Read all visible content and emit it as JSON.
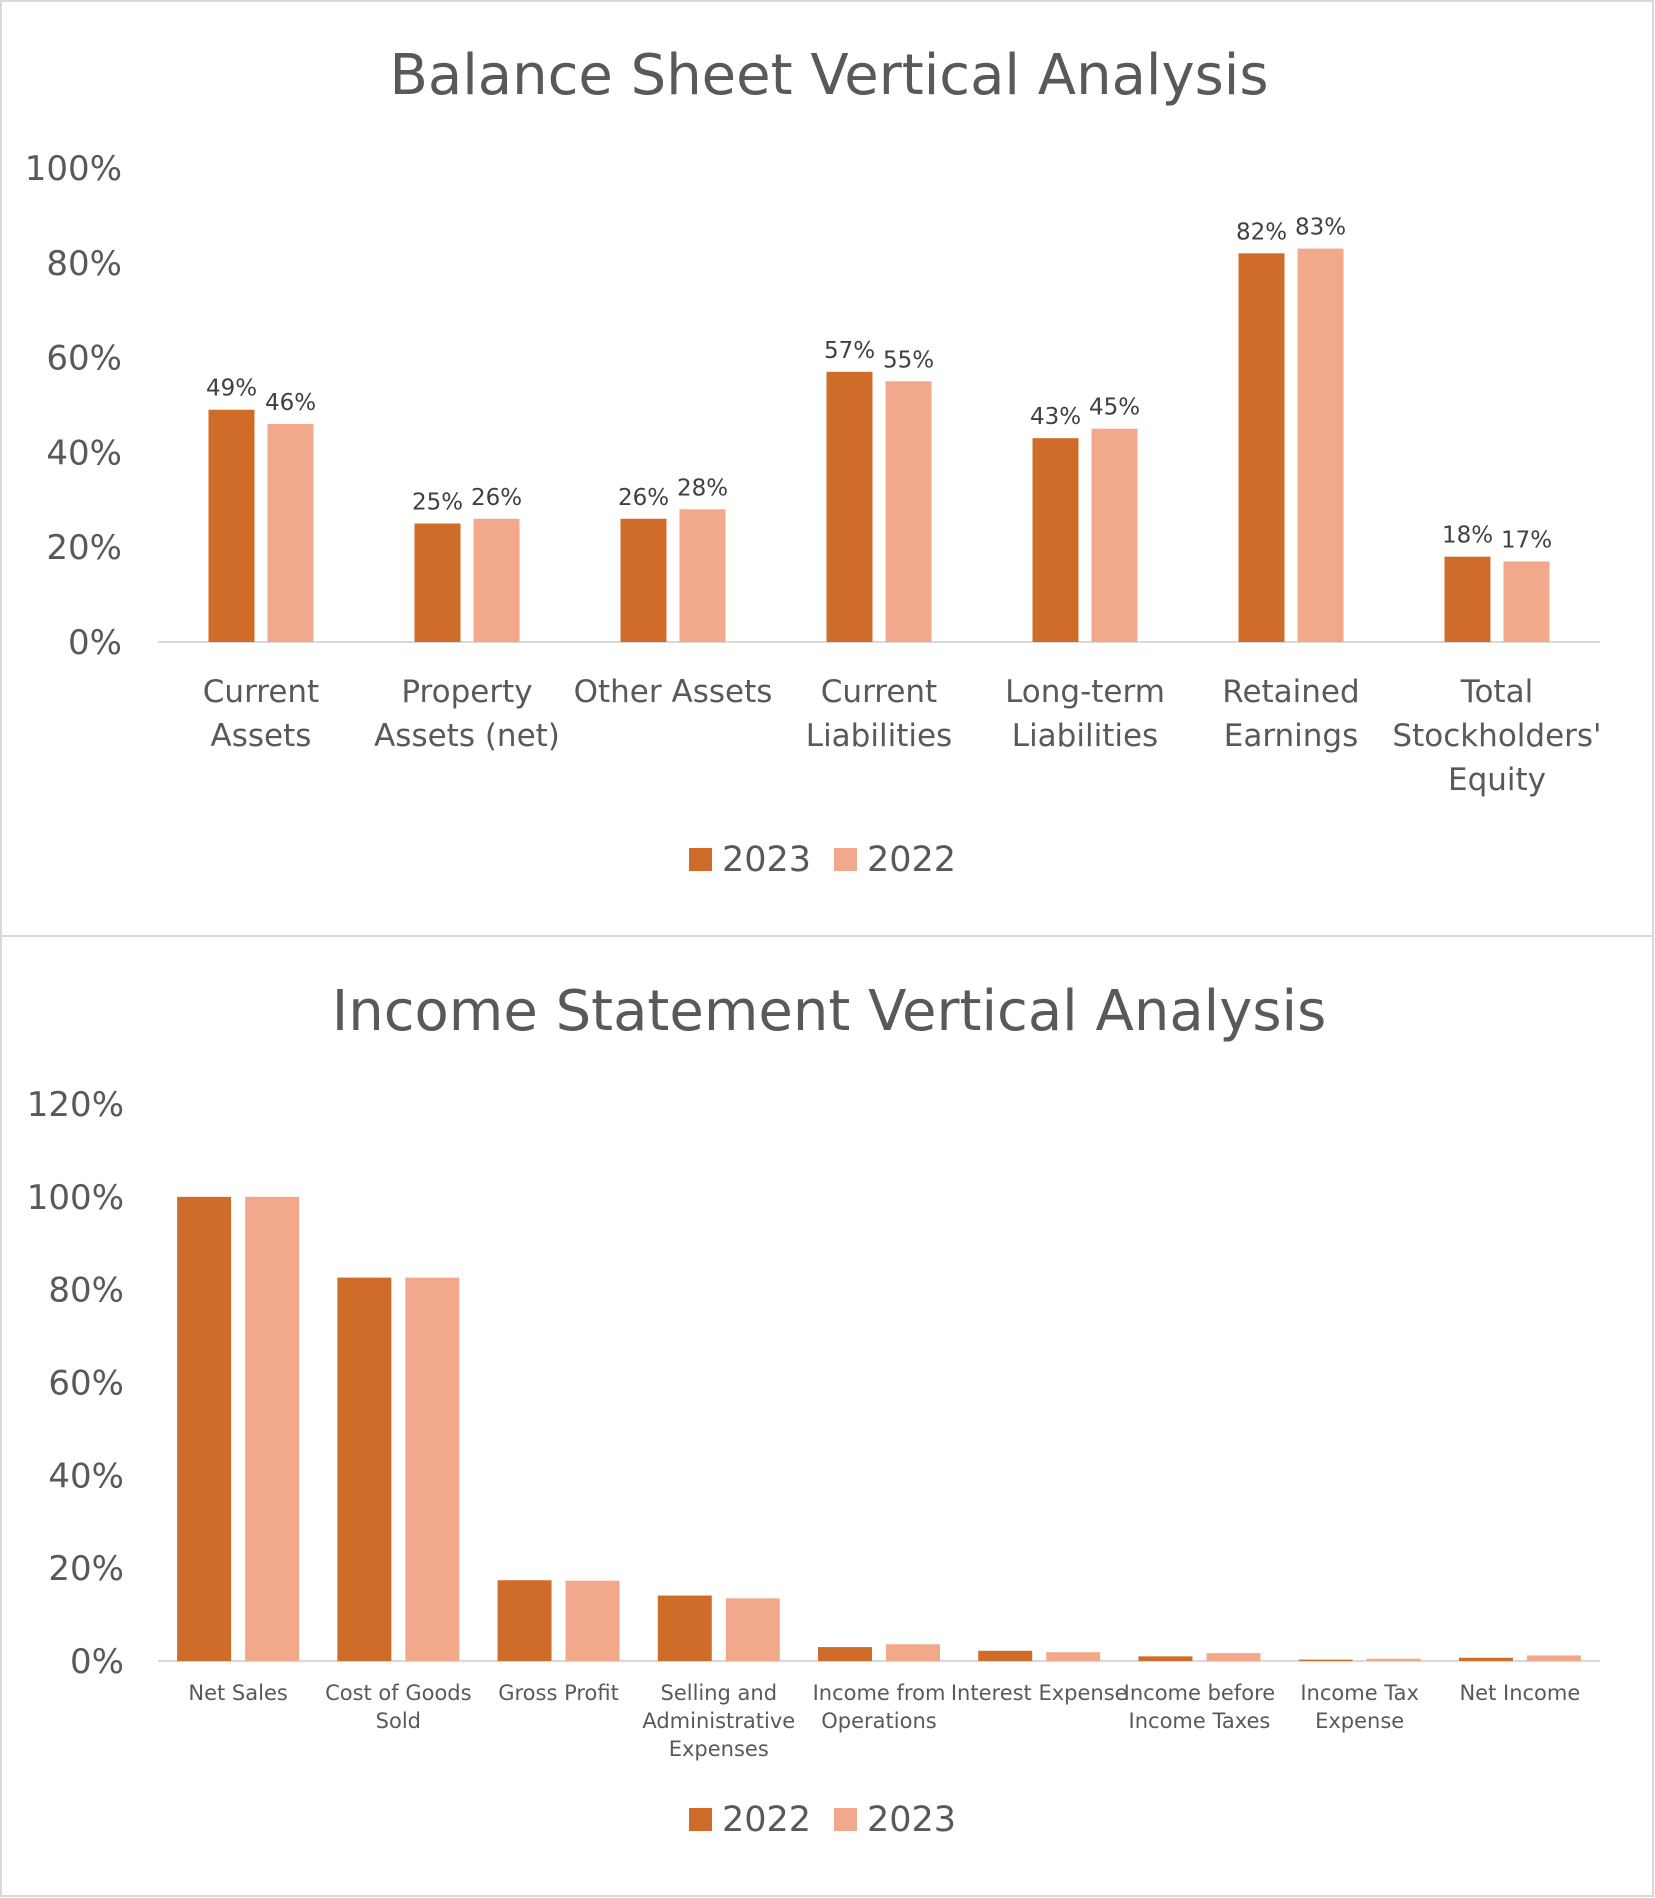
{
  "chart_data": [
    {
      "type": "bar",
      "title": "Balance Sheet Vertical Analysis",
      "xlabel": "",
      "ylabel": "",
      "ylim": [
        0,
        100
      ],
      "yticks": [
        "0%",
        "20%",
        "40%",
        "60%",
        "80%",
        "100%"
      ],
      "grid": false,
      "legend_position": "bottom",
      "categories": [
        [
          "Current",
          "Assets"
        ],
        [
          "Property",
          "Assets (net)"
        ],
        [
          "Other Assets"
        ],
        [
          "Current",
          "Liabilities"
        ],
        [
          "Long-term",
          "Liabilities"
        ],
        [
          "Retained",
          "Earnings"
        ],
        [
          "Total",
          "Stockholders'",
          "Equity"
        ]
      ],
      "series": [
        {
          "name": "2023",
          "color": "#D06C2A",
          "values": [
            49,
            25,
            26,
            57,
            43,
            82,
            18
          ],
          "labels": [
            "49%",
            "25%",
            "26%",
            "57%",
            "43%",
            "82%",
            "18%"
          ]
        },
        {
          "name": "2022",
          "color": "#F2A98B",
          "values": [
            46,
            26,
            28,
            55,
            45,
            83,
            17
          ],
          "labels": [
            "46%",
            "26%",
            "28%",
            "55%",
            "45%",
            "83%",
            "17%"
          ]
        }
      ]
    },
    {
      "type": "bar",
      "title": "Income Statement Vertical Analysis",
      "xlabel": "",
      "ylabel": "",
      "ylim": [
        0,
        120
      ],
      "yticks": [
        "0%",
        "20%",
        "40%",
        "60%",
        "80%",
        "100%",
        "120%"
      ],
      "grid": false,
      "legend_position": "bottom",
      "categories": [
        [
          "Net Sales"
        ],
        [
          "Cost of Goods",
          "Sold"
        ],
        [
          "Gross Profit"
        ],
        [
          "Selling and",
          "Administrative",
          "Expenses"
        ],
        [
          "Income from",
          "Operations"
        ],
        [
          "Interest Expense"
        ],
        [
          "Income before",
          "Income Taxes"
        ],
        [
          "Income Tax",
          "Expense"
        ],
        [
          "Net Income"
        ]
      ],
      "series": [
        {
          "name": "2022",
          "color": "#D06C2A",
          "values": [
            100,
            82.6,
            17.4,
            14.1,
            3.0,
            2.2,
            1.0,
            0.3,
            0.7
          ]
        },
        {
          "name": "2023",
          "color": "#F2A98B",
          "values": [
            100,
            82.6,
            17.3,
            13.5,
            3.6,
            1.9,
            1.7,
            0.5,
            1.2
          ]
        }
      ]
    }
  ]
}
